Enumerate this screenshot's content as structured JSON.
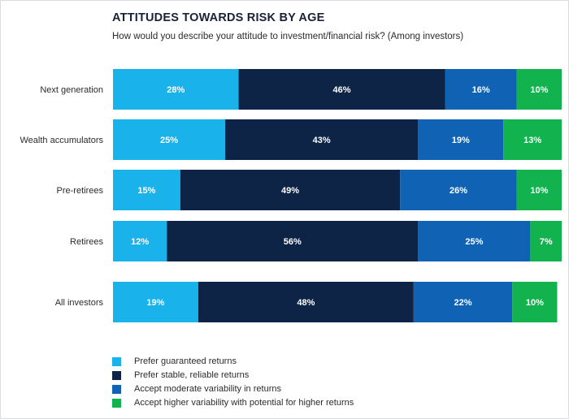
{
  "chart_data": {
    "type": "bar",
    "orientation": "horizontal",
    "stacked": true,
    "title": "ATTITUDES TOWARDS RISK BY AGE",
    "subtitle": "How would you describe your attitude to investment/financial risk? (Among investors)",
    "categories": [
      "Next generation",
      "Wealth accumulators",
      "Pre-retirees",
      "Retirees",
      "All investors"
    ],
    "series": [
      {
        "name": "Prefer guaranteed returns",
        "color": "#1ab2ea",
        "values": [
          28,
          25,
          15,
          12,
          19
        ],
        "labels": [
          "28%",
          "25%",
          "15%",
          "12%",
          "19%"
        ]
      },
      {
        "name": "Prefer stable, reliable returns",
        "color": "#0e2447",
        "values": [
          46,
          43,
          49,
          56,
          48
        ],
        "labels": [
          "46%",
          "43%",
          "49%",
          "56%",
          "48%"
        ]
      },
      {
        "name": "Accept moderate variability in returns",
        "color": "#0f62b4",
        "values": [
          16,
          19,
          26,
          25,
          22
        ],
        "labels": [
          "16%",
          "19%",
          "26%",
          "25%",
          "22%"
        ]
      },
      {
        "name": "Accept higher variability with potential for higher returns",
        "color": "#12b24e",
        "values": [
          10,
          13,
          10,
          7,
          10
        ],
        "labels": [
          "10%",
          "13%",
          "10%",
          "7%",
          "10%"
        ]
      }
    ],
    "xlim": [
      0,
      100
    ],
    "legend_position": "bottom-left",
    "grid": false
  }
}
